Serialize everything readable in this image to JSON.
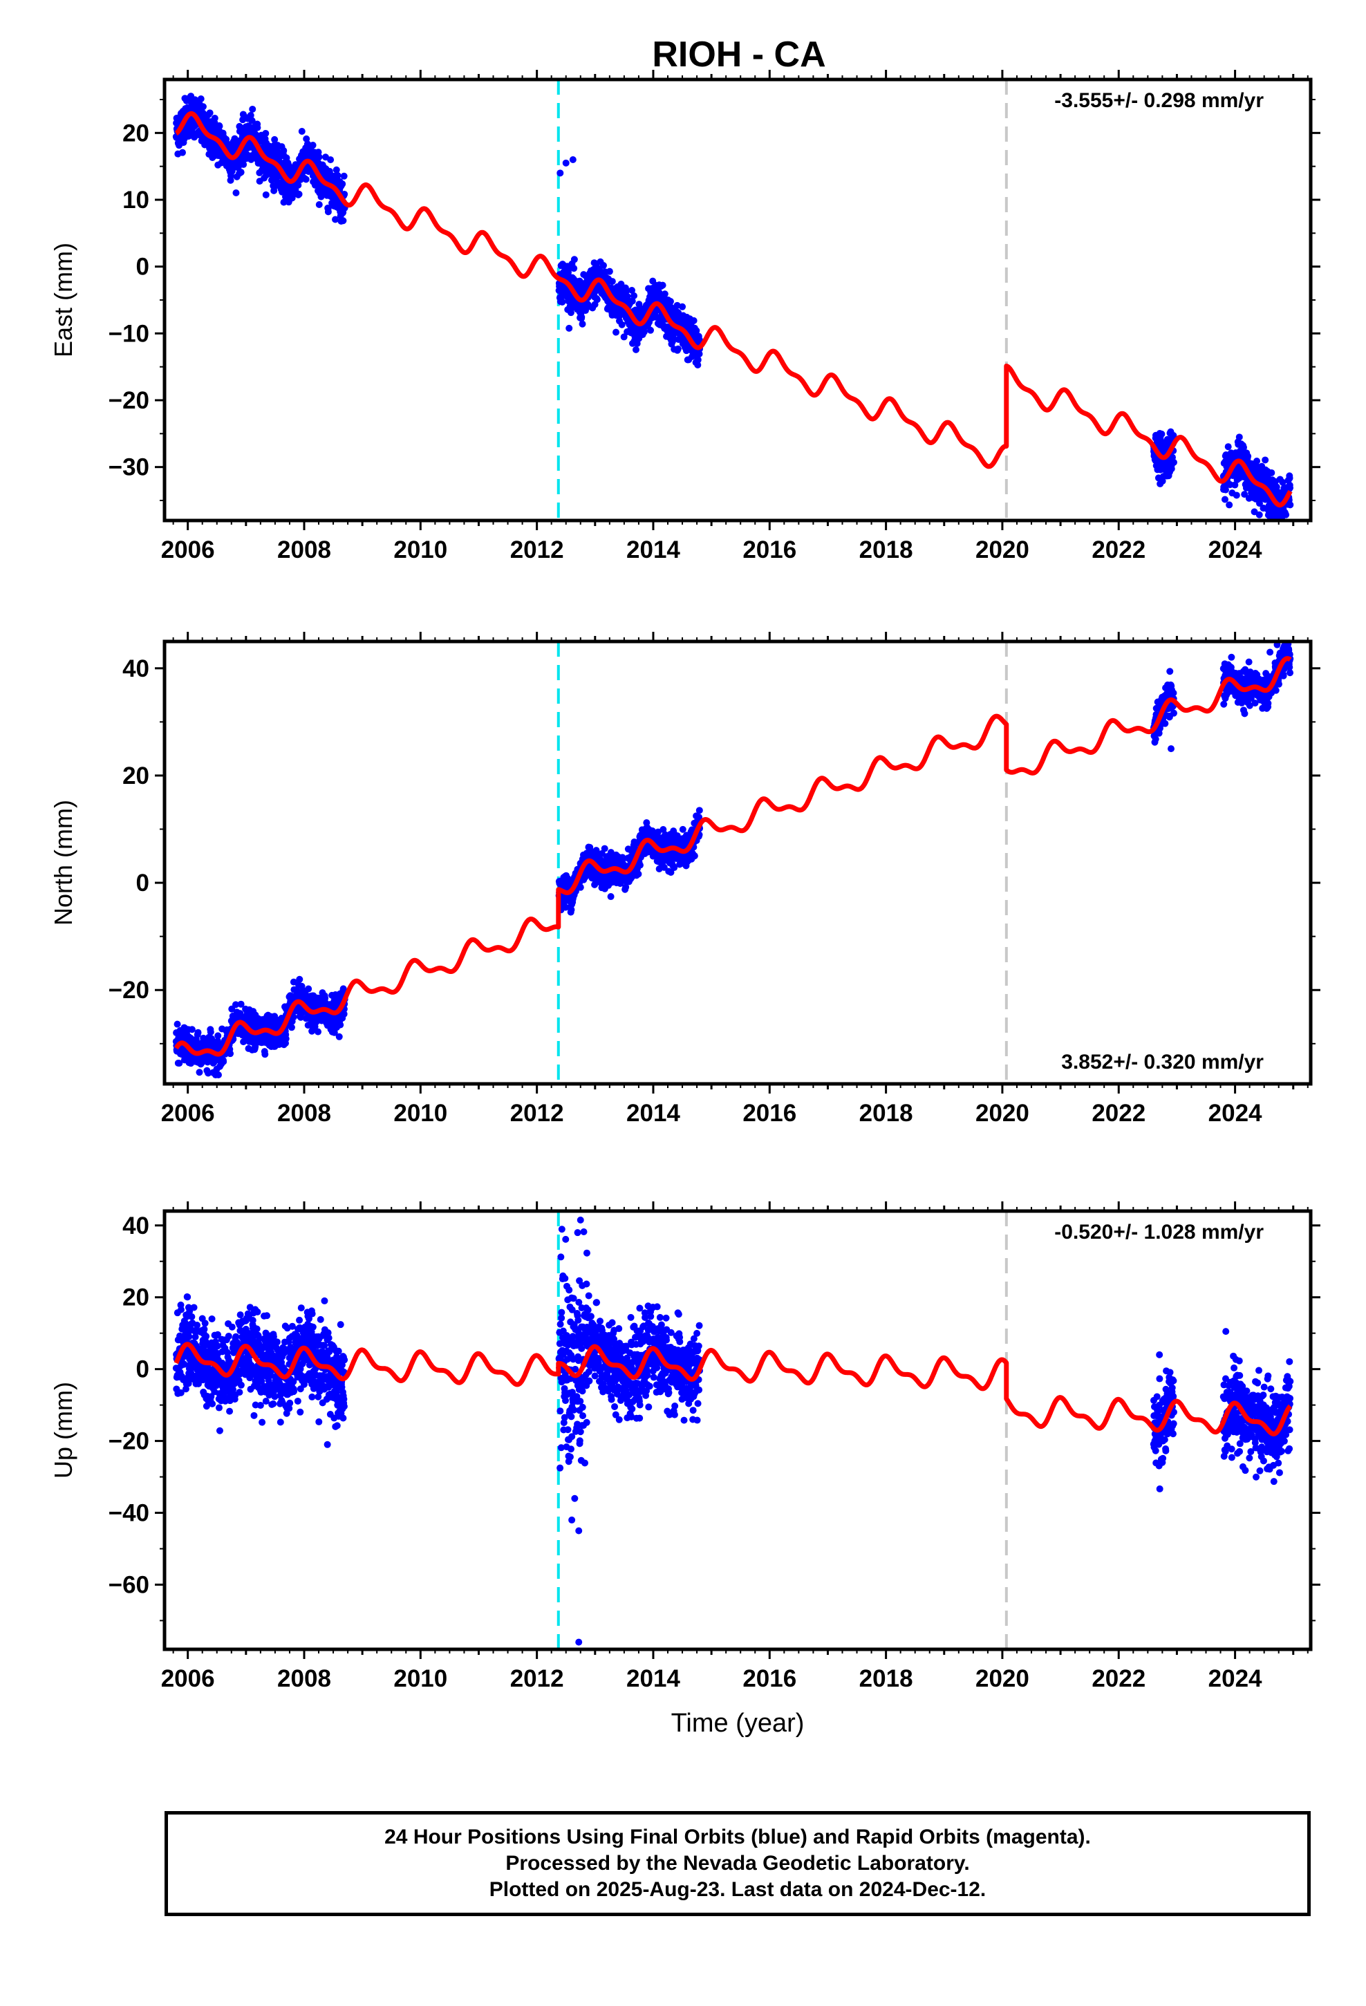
{
  "title": "RIOH - CA",
  "xlabel": "Time (year)",
  "footer": {
    "line1": "24 Hour Positions Using Final Orbits (blue) and Rapid Orbits (magenta).",
    "line2": "Processed by the Nevada Geodetic Laboratory.",
    "line3": "Plotted on 2025-Aug-23. Last data on 2024-Dec-12."
  },
  "colors": {
    "final_orbits": "#0000ff",
    "model": "#ff0000",
    "offset_equipment": "#00e5ee",
    "offset_other": "#c8c8c8"
  },
  "chart_data": [
    {
      "type": "scatter",
      "component": "east",
      "ylabel": "East (mm)",
      "rate_label": "-3.555+/- 0.298 mm/yr",
      "xlim": [
        2005.6,
        2025.3
      ],
      "ylim": [
        -38,
        28
      ],
      "xticks": [
        2006,
        2008,
        2010,
        2012,
        2014,
        2016,
        2018,
        2020,
        2022,
        2024
      ],
      "yticks": [
        -30,
        -20,
        -10,
        0,
        10,
        20
      ],
      "ytick_labels": [
        "−30",
        "−20",
        "−10",
        "0",
        "10",
        "20"
      ],
      "offsets": [
        {
          "x": 2012.37,
          "style": "cyan-dashed"
        },
        {
          "x": 2020.07,
          "style": "gray-dashed"
        }
      ],
      "data_segments": [
        [
          2005.8,
          2008.7
        ],
        [
          2012.38,
          2014.8
        ],
        [
          2022.6,
          2022.95
        ],
        [
          2023.8,
          2024.95
        ]
      ],
      "model": {
        "rate": -3.555,
        "intercept_2006": 21.0,
        "annual_amp": 1.6,
        "annual_phase": 0.6,
        "steps": [
          {
            "x": 2012.37,
            "dy": 0.0
          },
          {
            "x": 2020.07,
            "dy": 12.0
          }
        ]
      },
      "scatter_sd": 1.6,
      "outliers": [
        [
          2012.5,
          15.5
        ],
        [
          2012.62,
          16.0
        ],
        [
          2012.4,
          14.0
        ],
        [
          2008.55,
          9.5
        ]
      ]
    },
    {
      "type": "scatter",
      "component": "north",
      "ylabel": "North (mm)",
      "rate_label": "3.852+/- 0.320 mm/yr",
      "xlim": [
        2005.6,
        2025.3
      ],
      "ylim": [
        -37.5,
        45
      ],
      "xticks": [
        2006,
        2008,
        2010,
        2012,
        2014,
        2016,
        2018,
        2020,
        2022,
        2024
      ],
      "yticks": [
        -20,
        0,
        20,
        40
      ],
      "ytick_labels": [
        "−20",
        "0",
        "20",
        "40"
      ],
      "offsets": [
        {
          "x": 2012.37,
          "style": "cyan-dashed"
        },
        {
          "x": 2020.07,
          "style": "gray-dashed"
        }
      ],
      "data_segments": [
        [
          2005.8,
          2008.7
        ],
        [
          2012.38,
          2014.8
        ],
        [
          2022.6,
          2022.95
        ],
        [
          2023.8,
          2024.95
        ]
      ],
      "model": {
        "rate": 3.852,
        "intercept_2006": -32.0,
        "annual_amp": 1.8,
        "annual_phase": 2.0,
        "steps": [
          {
            "x": 2012.37,
            "dy": 7.0
          },
          {
            "x": 2020.07,
            "dy": -8.5
          }
        ]
      },
      "scatter_sd": 1.5,
      "outliers": [
        [
          2006.35,
          -35.5
        ],
        [
          2022.9,
          25.0
        ],
        [
          2024.6,
          43.0
        ]
      ]
    },
    {
      "type": "scatter",
      "component": "up",
      "ylabel": "Up (mm)",
      "rate_label": "-0.520+/- 1.028 mm/yr",
      "xlim": [
        2005.6,
        2025.3
      ],
      "ylim": [
        -78,
        44
      ],
      "xticks": [
        2006,
        2008,
        2010,
        2012,
        2014,
        2016,
        2018,
        2020,
        2022,
        2024
      ],
      "yticks": [
        -60,
        -40,
        -20,
        0,
        20,
        40
      ],
      "ytick_labels": [
        "−60",
        "−40",
        "−20",
        "0",
        "20",
        "40"
      ],
      "offsets": [
        {
          "x": 2012.37,
          "style": "cyan-dashed"
        },
        {
          "x": 2020.07,
          "style": "gray-dashed"
        }
      ],
      "data_segments": [
        [
          2005.8,
          2008.7
        ],
        [
          2012.38,
          2014.8
        ],
        [
          2022.6,
          2022.95
        ],
        [
          2023.8,
          2024.95
        ]
      ],
      "model": {
        "rate": -0.52,
        "intercept_2006": 2.5,
        "annual_amp": 3.2,
        "annual_phase": 1.2,
        "steps": [
          {
            "x": 2012.37,
            "dy": 3.0
          },
          {
            "x": 2020.07,
            "dy": -10.0
          }
        ]
      },
      "scatter_sd": 5.5,
      "outliers": [
        [
          2012.75,
          41.5
        ],
        [
          2012.7,
          38.0
        ],
        [
          2012.72,
          -76.0
        ],
        [
          2012.72,
          -45.0
        ],
        [
          2012.6,
          -42.0
        ],
        [
          2012.65,
          -36.0
        ],
        [
          2008.4,
          -21.0
        ],
        [
          2008.35,
          19.0
        ],
        [
          2022.7,
          4.0
        ],
        [
          2022.75,
          -26.0
        ]
      ]
    }
  ]
}
